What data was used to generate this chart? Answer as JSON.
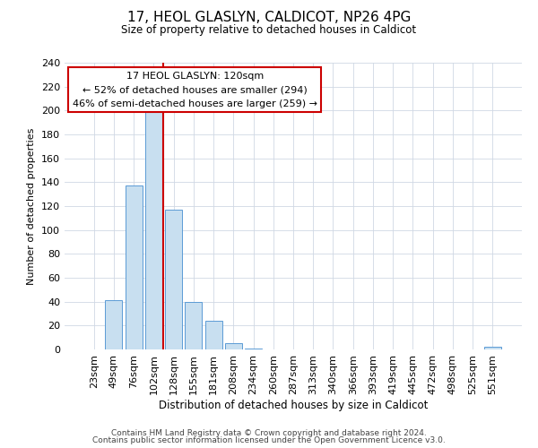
{
  "title": "17, HEOL GLASLYN, CALDICOT, NP26 4PG",
  "subtitle": "Size of property relative to detached houses in Caldicot",
  "xlabel": "Distribution of detached houses by size in Caldicot",
  "ylabel": "Number of detached properties",
  "bar_labels": [
    "23sqm",
    "49sqm",
    "76sqm",
    "102sqm",
    "128sqm",
    "155sqm",
    "181sqm",
    "208sqm",
    "234sqm",
    "260sqm",
    "287sqm",
    "313sqm",
    "340sqm",
    "366sqm",
    "393sqm",
    "419sqm",
    "445sqm",
    "472sqm",
    "498sqm",
    "525sqm",
    "551sqm"
  ],
  "bar_values": [
    0,
    41,
    137,
    200,
    117,
    40,
    24,
    5,
    1,
    0,
    0,
    0,
    0,
    0,
    0,
    0,
    0,
    0,
    0,
    0,
    2
  ],
  "bar_color": "#c8dff0",
  "bar_edge_color": "#5b9bd5",
  "vline_x_index": 3.5,
  "vline_color": "#cc0000",
  "ylim": [
    0,
    240
  ],
  "yticks": [
    0,
    20,
    40,
    60,
    80,
    100,
    120,
    140,
    160,
    180,
    200,
    220,
    240
  ],
  "annotation_line1": "17 HEOL GLASLYN: 120sqm",
  "annotation_line2": "← 52% of detached houses are smaller (294)",
  "annotation_line3": "46% of semi-detached houses are larger (259) →",
  "annotation_box_color": "#ffffff",
  "annotation_box_edge": "#cc0000",
  "footer1": "Contains HM Land Registry data © Crown copyright and database right 2024.",
  "footer2": "Contains public sector information licensed under the Open Government Licence v3.0."
}
